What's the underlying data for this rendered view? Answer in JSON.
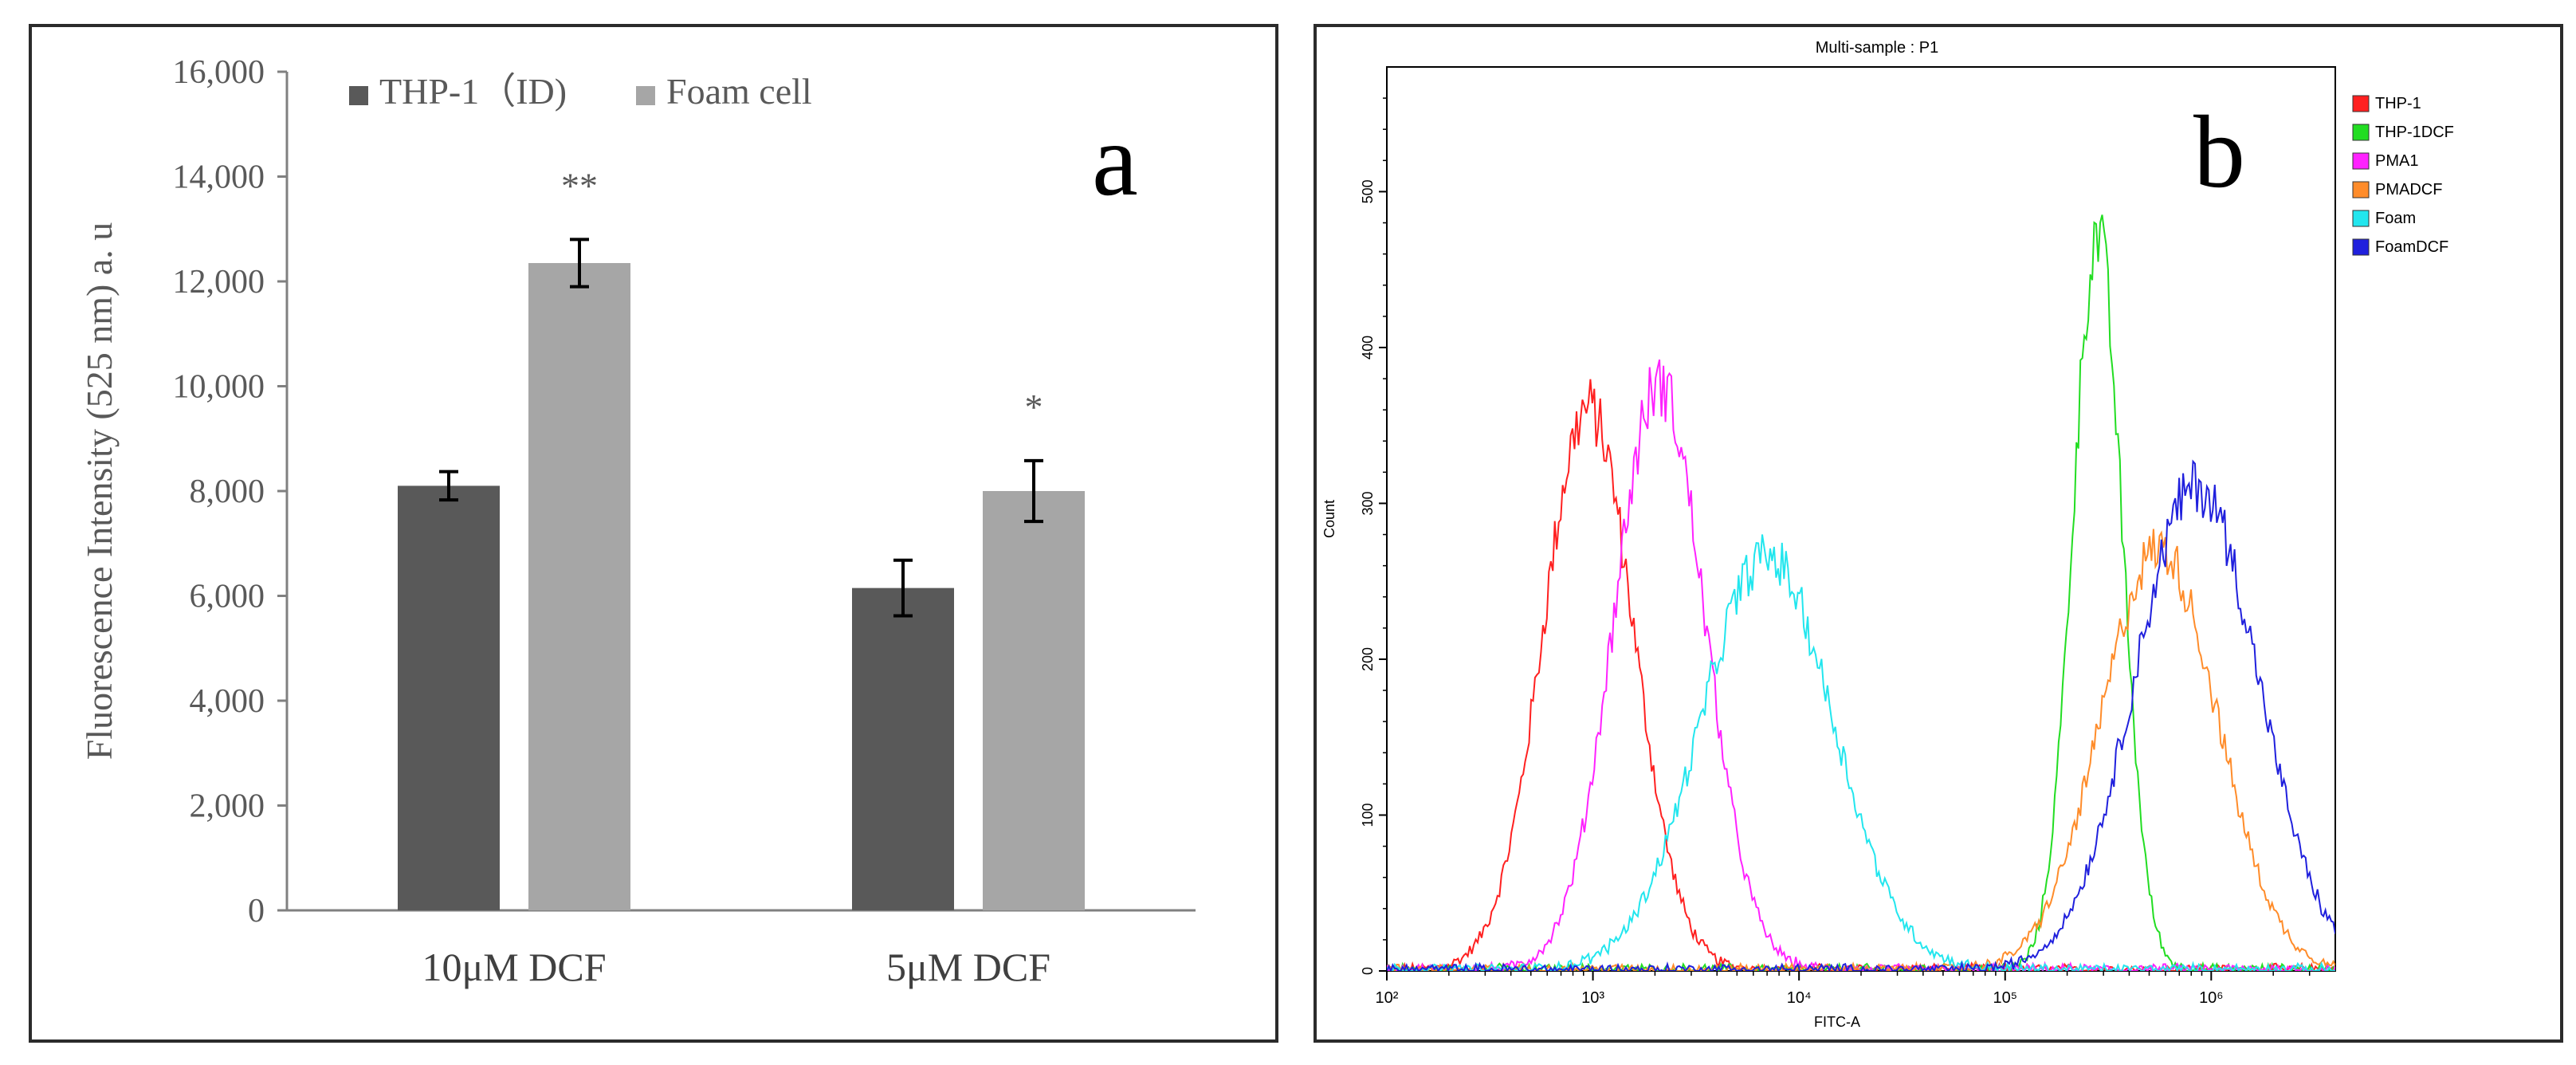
{
  "chart_data": [
    {
      "type": "bar",
      "panel_letter": "a",
      "ylabel": "Fluorescence Intensity (525 nm) a. u",
      "xlabel": "",
      "ylim": [
        0,
        16000
      ],
      "yticks": [
        0,
        2000,
        4000,
        6000,
        8000,
        10000,
        12000,
        14000,
        16000
      ],
      "ytick_labels": [
        "0",
        "2,000",
        "4,000",
        "6,000",
        "8,000",
        "10,000",
        "12,000",
        "14,000",
        "16,000"
      ],
      "categories": [
        "10μM DCF",
        "5μM DCF"
      ],
      "series": [
        {
          "name": "THP-1（ID)",
          "color": "#595959",
          "values": [
            8100,
            6150
          ],
          "errors": [
            270,
            530
          ]
        },
        {
          "name": "Foam cell",
          "color": "#a6a6a6",
          "values": [
            12350,
            8000
          ],
          "errors": [
            450,
            580
          ]
        }
      ],
      "annotations": [
        {
          "category": "10μM DCF",
          "series": "Foam cell",
          "text": "**"
        },
        {
          "category": "5μM DCF",
          "series": "Foam cell",
          "text": "*"
        }
      ],
      "legend_position": "top-left",
      "grid": false
    },
    {
      "type": "line",
      "panel_letter": "b",
      "title": "Multi-sample : P1",
      "xlabel": "FITC-A",
      "ylabel": "Count",
      "x_scale": "log",
      "xlim": [
        100,
        4000000
      ],
      "xtick_labels": [
        "10²",
        "10³",
        "10⁴",
        "10⁵",
        "10⁶"
      ],
      "xticks": [
        100,
        1000,
        10000,
        100000,
        1000000
      ],
      "ylim": [
        0,
        580
      ],
      "yticks": [
        0,
        100,
        200,
        300,
        400,
        500
      ],
      "ytick_labels": [
        "0",
        "100",
        "200",
        "300",
        "400",
        "500"
      ],
      "legend_position": "right",
      "grid": false,
      "series": [
        {
          "name": "THP-1",
          "color": "#ff2020",
          "shape": "lognormal",
          "peak_x": 950,
          "peak_y": 360,
          "log_sigma": 0.22
        },
        {
          "name": "THP-1DCF",
          "color": "#22dd22",
          "shape": "lognormal",
          "peak_x": 280000,
          "peak_y": 470,
          "log_sigma": 0.12
        },
        {
          "name": "PMA1",
          "color": "#ff22ff",
          "shape": "lognormal",
          "peak_x": 2100,
          "peak_y": 375,
          "log_sigma": 0.22
        },
        {
          "name": "PMADCF",
          "color": "#ff8c2a",
          "shape": "lognormal",
          "peak_x": 560000,
          "peak_y": 270,
          "log_sigma": 0.28
        },
        {
          "name": "Foam",
          "color": "#22e6ee",
          "shape": "lognormal",
          "peak_x": 7000,
          "peak_y": 265,
          "log_sigma": 0.32
        },
        {
          "name": "FoamDCF",
          "color": "#2020dd",
          "shape": "lognormal",
          "peak_x": 850000,
          "peak_y": 310,
          "log_sigma": 0.3
        }
      ]
    }
  ]
}
